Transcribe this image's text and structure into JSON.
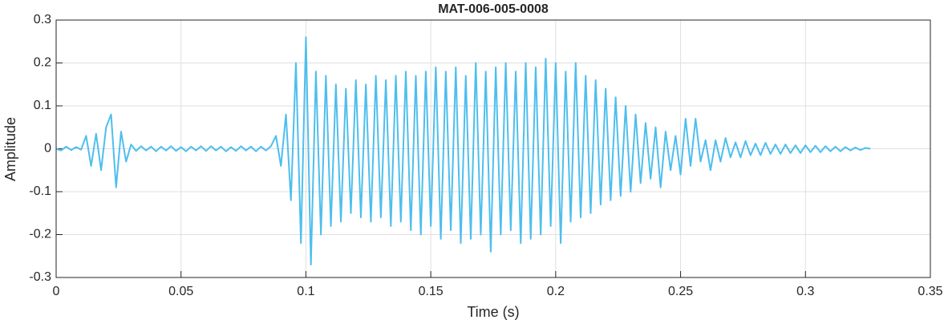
{
  "chart_data": {
    "type": "line",
    "title": "MAT-006-005-0008",
    "xlabel": "Time (s)",
    "ylabel": "Amplitude",
    "x": [
      0,
      0.002,
      0.004,
      0.006,
      0.008,
      0.01,
      0.012,
      0.014,
      0.016,
      0.018,
      0.02,
      0.022,
      0.024,
      0.026,
      0.028,
      0.03,
      0.032,
      0.034,
      0.036,
      0.038,
      0.04,
      0.042,
      0.044,
      0.046,
      0.048,
      0.05,
      0.052,
      0.054,
      0.056,
      0.058,
      0.06,
      0.062,
      0.064,
      0.066,
      0.068,
      0.07,
      0.072,
      0.074,
      0.076,
      0.078,
      0.08,
      0.082,
      0.084,
      0.086,
      0.088,
      0.09,
      0.092,
      0.094,
      0.096,
      0.098,
      0.1,
      0.102,
      0.104,
      0.106,
      0.108,
      0.11,
      0.112,
      0.114,
      0.116,
      0.118,
      0.12,
      0.122,
      0.124,
      0.126,
      0.128,
      0.13,
      0.132,
      0.134,
      0.136,
      0.138,
      0.14,
      0.142,
      0.144,
      0.146,
      0.148,
      0.15,
      0.152,
      0.154,
      0.156,
      0.158,
      0.16,
      0.162,
      0.164,
      0.166,
      0.168,
      0.17,
      0.172,
      0.174,
      0.176,
      0.178,
      0.18,
      0.182,
      0.184,
      0.186,
      0.188,
      0.19,
      0.192,
      0.194,
      0.196,
      0.198,
      0.2,
      0.202,
      0.204,
      0.206,
      0.208,
      0.21,
      0.212,
      0.214,
      0.216,
      0.218,
      0.22,
      0.222,
      0.224,
      0.226,
      0.228,
      0.23,
      0.232,
      0.234,
      0.236,
      0.238,
      0.24,
      0.242,
      0.244,
      0.246,
      0.248,
      0.25,
      0.252,
      0.254,
      0.256,
      0.258,
      0.26,
      0.262,
      0.264,
      0.266,
      0.268,
      0.27,
      0.272,
      0.274,
      0.276,
      0.278,
      0.28,
      0.282,
      0.284,
      0.286,
      0.288,
      0.29,
      0.292,
      0.294,
      0.296,
      0.298,
      0.3,
      0.302,
      0.304,
      0.306,
      0.308,
      0.31,
      0.312,
      0.314,
      0.316,
      0.318,
      0.32,
      0.322,
      0.324,
      0.326
    ],
    "series": [
      {
        "name": "Amplitude",
        "color": "#4dbeee",
        "values": [
          0,
          -0.004,
          0.005,
          -0.003,
          0.004,
          -0.002,
          0.03,
          -0.04,
          0.035,
          -0.05,
          0.05,
          0.08,
          -0.09,
          0.04,
          -0.03,
          0.01,
          -0.005,
          0.006,
          -0.004,
          0.005,
          -0.006,
          0.005,
          -0.004,
          0.006,
          -0.005,
          0.004,
          -0.006,
          0.005,
          -0.004,
          0.006,
          -0.005,
          0.006,
          -0.004,
          0.005,
          -0.006,
          0.004,
          -0.005,
          0.006,
          -0.004,
          0.005,
          -0.006,
          0.005,
          -0.004,
          0.006,
          0.03,
          -0.04,
          0.08,
          -0.12,
          0.2,
          -0.22,
          0.26,
          -0.27,
          0.18,
          -0.2,
          0.17,
          -0.18,
          0.15,
          -0.17,
          0.14,
          -0.15,
          0.16,
          -0.16,
          0.15,
          -0.17,
          0.17,
          -0.16,
          0.16,
          -0.18,
          0.17,
          -0.17,
          0.18,
          -0.19,
          0.17,
          -0.2,
          0.18,
          -0.18,
          0.19,
          -0.21,
          0.18,
          -0.19,
          0.19,
          -0.22,
          0.17,
          -0.21,
          0.2,
          -0.2,
          0.18,
          -0.24,
          0.19,
          -0.2,
          0.2,
          -0.19,
          0.18,
          -0.22,
          0.2,
          -0.21,
          0.19,
          -0.2,
          0.21,
          -0.18,
          0.2,
          -0.22,
          0.18,
          -0.17,
          0.2,
          -0.16,
          0.17,
          -0.15,
          0.16,
          -0.13,
          0.14,
          -0.12,
          0.12,
          -0.11,
          0.1,
          -0.1,
          0.08,
          -0.08,
          0.06,
          -0.07,
          0.05,
          -0.09,
          0.04,
          -0.05,
          0.03,
          -0.06,
          0.07,
          -0.04,
          0.07,
          -0.03,
          0.02,
          -0.05,
          0.02,
          -0.03,
          0.025,
          -0.02,
          0.015,
          -0.02,
          0.018,
          -0.015,
          0.012,
          -0.015,
          0.014,
          -0.012,
          0.01,
          -0.012,
          0.01,
          -0.01,
          0.008,
          -0.01,
          0.008,
          -0.008,
          0.007,
          -0.008,
          0.006,
          -0.006,
          0.005,
          -0.006,
          0.004,
          -0.004,
          0.003,
          -0.003,
          0.002,
          0
        ]
      }
    ],
    "xlim": [
      0,
      0.35
    ],
    "xticks": [
      0,
      0.05,
      0.1,
      0.15,
      0.2,
      0.25,
      0.3,
      0.35
    ],
    "ylim": [
      -0.3,
      0.3
    ],
    "yticks": [
      -0.3,
      -0.2,
      -0.1,
      0,
      0.1,
      0.2,
      0.3
    ],
    "grid": true
  }
}
